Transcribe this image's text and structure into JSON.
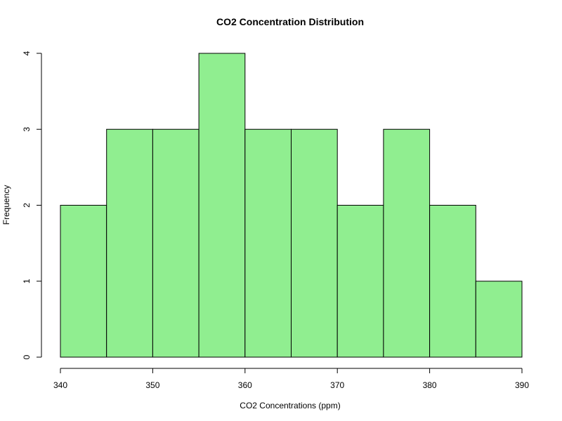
{
  "chart_data": {
    "type": "bar",
    "title": "CO2 Concentration Distribution",
    "xlabel": "CO2 Concentrations (ppm)",
    "ylabel": "Frequency",
    "bin_edges": [
      340,
      345,
      350,
      355,
      360,
      365,
      370,
      375,
      380,
      385,
      390
    ],
    "values": [
      2,
      3,
      3,
      4,
      3,
      3,
      2,
      3,
      2,
      1
    ],
    "xlim": [
      340,
      390
    ],
    "ylim": [
      0,
      4
    ],
    "x_ticks": [
      340,
      350,
      360,
      370,
      380,
      390
    ],
    "y_ticks": [
      0,
      1,
      2,
      3,
      4
    ],
    "bar_color": "#90EE90",
    "bar_edge_color": "#000000",
    "grid": false,
    "legend": "none"
  }
}
